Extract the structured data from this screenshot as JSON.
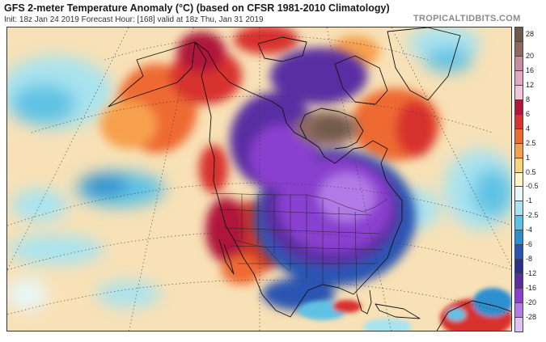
{
  "header": {
    "title": "GFS 2-meter Temperature Anomaly (°C) (based on CFSR 1981-2010 Climatology)",
    "subtitle": "Init: 18z Jan 24 2019   Forecast Hour: [168]   valid at 18z Thu, Jan 31 2019",
    "brand": "TROPICALTIDBITS.COM"
  },
  "legend": {
    "ticks": [
      "28",
      "20",
      "16",
      "12",
      "8",
      "6",
      "4",
      "2.5",
      "1",
      "0.5",
      "-0.5",
      "-1",
      "-2.5",
      "-4",
      "-6",
      "-8",
      "-12",
      "-16",
      "-20",
      "-28"
    ],
    "colors": [
      "#6e5a4a",
      "#8c6a5f",
      "#c48da0",
      "#e3a8c3",
      "#f2c6d9",
      "#b0173a",
      "#d8332e",
      "#ee6b33",
      "#f6a04d",
      "#fad37e",
      "#fdf4c8",
      "#e7f7fa",
      "#a8e3ef",
      "#5fc2e4",
      "#2f8fce",
      "#2954b2",
      "#2c2f8e",
      "#5a2ea3",
      "#8a3fcf",
      "#b27ae6",
      "#dec3f2"
    ]
  },
  "map": {
    "colors": {
      "ocean_base": "#f8e1b6",
      "warm_west": "#c9382c",
      "cold_core": "#8a3fcf",
      "blue_edge": "#2954b2",
      "arctic_warm": "#d8332e",
      "pacific_cool": "#6cc8e6"
    }
  }
}
